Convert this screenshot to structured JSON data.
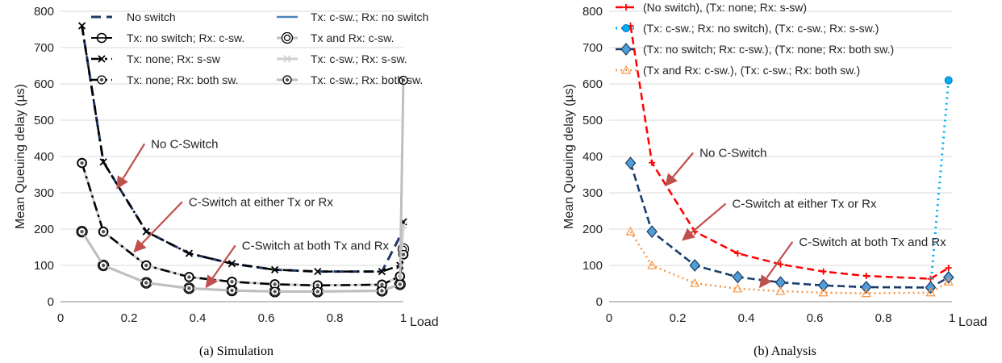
{
  "chart_data": [
    {
      "type": "line",
      "caption": "(a) Simulation",
      "ylabel": "Mean Queuing delay (µs)",
      "xlabel": "Load",
      "xlim": [
        0,
        1
      ],
      "ylim": [
        0,
        800
      ],
      "x_ticks": [
        "0",
        "0.2",
        "0.4",
        "0.6",
        "0.8",
        "1"
      ],
      "y_ticks": [
        "0",
        "100",
        "200",
        "300",
        "400",
        "500",
        "600",
        "700",
        "800"
      ],
      "grid": "horizontal",
      "legend_position": "top",
      "x": [
        0.0625,
        0.125,
        0.25,
        0.375,
        0.5,
        0.625,
        0.75,
        0.9375,
        0.99,
        1.0
      ],
      "series": [
        {
          "name": "No switch",
          "color": "#1f3864",
          "dash": "12,7",
          "width": 3,
          "marker": "none",
          "values": [
            760,
            385,
            193,
            133,
            105,
            88,
            83,
            83,
            180,
            220
          ]
        },
        {
          "name": "Tx: c-sw.; Rx: no switch",
          "color": "#4f81bd",
          "dash": "",
          "width": 2.5,
          "marker": "none",
          "values": [
            382,
            193,
            100,
            68,
            55,
            48,
            45,
            47,
            70,
            130
          ]
        },
        {
          "name": "Tx: no switch; Rx: c-sw.",
          "color": "#000000",
          "dash": "",
          "width": 2,
          "marker": "circle-cross",
          "values": [
            382,
            193,
            100,
            68,
            55,
            48,
            45,
            47,
            70,
            130
          ]
        },
        {
          "name": "Tx and Rx: c-sw.",
          "color": "#bfbfbf",
          "dash": "",
          "width": 3,
          "marker": "double-circle",
          "values": [
            193,
            100,
            52,
            37,
            31,
            28,
            28,
            30,
            48,
            145
          ]
        },
        {
          "name": "Tx: none; Rx: s-sw",
          "color": "#000000",
          "dash": "12,5,3,5",
          "width": 2.5,
          "marker": "x",
          "values": [
            760,
            385,
            193,
            133,
            105,
            88,
            83,
            83,
            100,
            220
          ]
        },
        {
          "name": "Tx: c-sw.; Rx: s-sw.",
          "color": "#d0d0d0",
          "dash": "",
          "width": 3,
          "marker": "x",
          "values": [
            382,
            193,
            100,
            68,
            55,
            48,
            45,
            47,
            70,
            210
          ]
        },
        {
          "name": "Tx: none;  Rx: both sw.",
          "color": "#000000",
          "dash": "12,5,3,5",
          "width": 2.5,
          "marker": "dot-circle",
          "values": [
            382,
            193,
            100,
            68,
            55,
            48,
            45,
            47,
            70,
            130
          ]
        },
        {
          "name": "Tx: c-sw.; Rx: both sw.",
          "color": "#bfbfbf",
          "dash": "",
          "width": 3,
          "marker": "dot-circle",
          "values": [
            193,
            100,
            52,
            37,
            31,
            28,
            28,
            30,
            48,
            610
          ]
        }
      ],
      "annotations": [
        {
          "text": "No C-Switch",
          "tail": [
            0.245,
            435
          ],
          "head": [
            0.165,
            313
          ]
        },
        {
          "text": "C-Switch at either Tx or Rx",
          "tail": [
            0.355,
            275
          ],
          "head": [
            0.215,
            138
          ]
        },
        {
          "text": "C-Switch at both Tx and Rx",
          "tail": [
            0.51,
            155
          ],
          "head": [
            0.425,
            40
          ]
        }
      ]
    },
    {
      "type": "line",
      "caption": "(b) Analysis",
      "ylabel": "Mean Queuing delay (µs)",
      "xlabel": "Load",
      "xlim": [
        0,
        1
      ],
      "ylim": [
        0,
        800
      ],
      "x_ticks": [
        "0",
        "0.2",
        "0.4",
        "0.6",
        "0.8",
        "1"
      ],
      "y_ticks": [
        "0",
        "100",
        "200",
        "300",
        "400",
        "500",
        "600",
        "700",
        "800"
      ],
      "grid": "horizontal",
      "legend_position": "top",
      "x": [
        0.0625,
        0.125,
        0.25,
        0.375,
        0.5,
        0.625,
        0.75,
        0.9375,
        0.99
      ],
      "series": [
        {
          "name": "(No switch), (Tx: none; Rx: s-sw)",
          "color": "#ff0000",
          "dash": "9,5",
          "width": 2.5,
          "marker": "plus",
          "values": [
            760,
            383,
            193,
            133,
            103,
            83,
            71,
            63,
            93
          ]
        },
        {
          "name": "(Tx: c-sw.; Rx: no switch), (Tx: c-sw.; Rx: s-sw.)",
          "color": "#00b0f0",
          "dash": "2,5",
          "width": 3,
          "marker": "none",
          "values": [
            382,
            193,
            100,
            68,
            53,
            45,
            40,
            39,
            610
          ]
        },
        {
          "name": "(Tx: no switch; Rx: c-sw.), (Tx: none;  Rx: both sw.)",
          "color": "#1f3864",
          "dash": "9,5",
          "width": 2.5,
          "marker": "diamond",
          "values": [
            382,
            193,
            100,
            68,
            53,
            45,
            40,
            39,
            67
          ]
        },
        {
          "name": "(Tx and Rx: c-sw.), (Tx: c-sw.; Rx: both sw.)",
          "color": "#f79646",
          "dash": "2,4",
          "width": 2.5,
          "marker": "triangle",
          "values": [
            193,
            100,
            51,
            36,
            29,
            25,
            23,
            25,
            55
          ]
        }
      ],
      "annotations": [
        {
          "text": "No C-Switch",
          "tail": [
            0.245,
            410
          ],
          "head": [
            0.165,
            320
          ]
        },
        {
          "text": "C-Switch at either Tx or Rx",
          "tail": [
            0.34,
            270
          ],
          "head": [
            0.215,
            170
          ]
        },
        {
          "text": "C-Switch at both Tx and Rx",
          "tail": [
            0.535,
            165
          ],
          "head": [
            0.44,
            40
          ]
        }
      ]
    }
  ]
}
